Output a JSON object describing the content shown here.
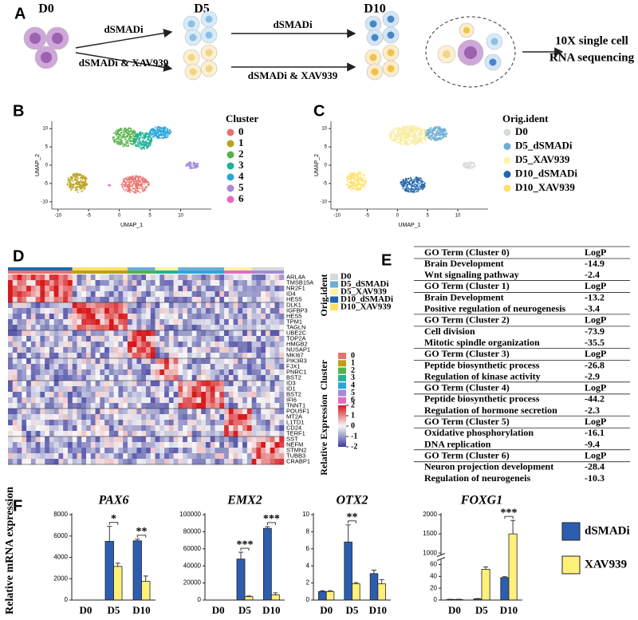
{
  "panel_labels": [
    "A",
    "B",
    "C",
    "D",
    "E",
    "F"
  ],
  "schematic": {
    "stages": [
      "D0",
      "D5",
      "D10"
    ],
    "treatments": [
      "dSMADi",
      "dSMADi & XAV939",
      "dSMADi",
      "dSMADi & XAV939"
    ],
    "output": [
      "10X single cell",
      "RNA sequencing"
    ]
  },
  "heatmap": {
    "genes": [
      "ARL4A",
      "TMSB15A",
      "NR2F1",
      "ID4",
      "HES5",
      "DLK1",
      "IGFBP3",
      "HES5",
      "TPM1",
      "TAGLN",
      "UBE2C",
      "TOP2A",
      "HMGB2",
      "NUSAP1",
      "MKI67",
      "PIK3R3",
      "FJX1",
      "PNRC1",
      "BST2",
      "ID3",
      "ID1",
      "BST2",
      "IFI6",
      "TNNT1",
      "POU5F1",
      "MT2A",
      "L1TD1",
      "CD24",
      "TERF1",
      "SST",
      "NEFM",
      "STMN2",
      "TUBB3",
      "CRABP1"
    ],
    "colorbar_title": "Relative Expression",
    "clim": [
      -2,
      2
    ],
    "colorbar_ticks": [
      2,
      1,
      0,
      -1,
      -2
    ]
  },
  "go_table": {
    "groups": [
      {
        "header": [
          "GO Term (Cluster 0)",
          "LogP"
        ],
        "rows": [
          [
            "Brain Development",
            -14.9
          ],
          [
            "Wnt signaling pathway",
            -2.4
          ]
        ]
      },
      {
        "header": [
          "GO Term (Cluster 1)",
          "LogP"
        ],
        "rows": [
          [
            "Brain Development",
            -13.2
          ],
          [
            "Positive regulation of neurogenesis",
            -3.4
          ]
        ]
      },
      {
        "header": [
          "GO Term (Cluster 2)",
          "LogP"
        ],
        "rows": [
          [
            "Cell division",
            -73.9
          ],
          [
            "Mitotic spindle organization",
            -35.5
          ]
        ]
      },
      {
        "header": [
          "GO Term (Cluster 3)",
          "LogP"
        ],
        "rows": [
          [
            "Peptide biosynthetic process",
            -26.8
          ],
          [
            "Regulation of kinase activity",
            -2.9
          ]
        ]
      },
      {
        "header": [
          "GO Term (Cluster 4)",
          "LogP"
        ],
        "rows": [
          [
            "Peptide biosynthetic process",
            -44.2
          ],
          [
            "Regulation of hormone secretion",
            -2.3
          ]
        ]
      },
      {
        "header": [
          "GO Term (Cluster 5)",
          "LogP"
        ],
        "rows": [
          [
            "Oxidative phosphorylation",
            -16.1
          ],
          [
            "DNA replication",
            -9.4
          ]
        ]
      },
      {
        "header": [
          "GO Term (Cluster 6)",
          "LogP"
        ],
        "rows": [
          [
            "Neuron projection development",
            -28.4
          ],
          [
            "Regulation of neurogeneis",
            -10.3
          ]
        ]
      }
    ]
  },
  "chart_data": [
    {
      "type": "scatter",
      "xlabel": "UMAP_1",
      "ylabel": "UMAP_2",
      "xlim": [
        -11,
        15
      ],
      "ylim": [
        -12,
        12
      ],
      "xticks": [
        -10,
        -5,
        0,
        5,
        10
      ],
      "yticks": [
        -10,
        -5,
        0,
        5,
        10
      ],
      "legend_title": "Cluster",
      "series": [
        {
          "name": "0",
          "color": "#e8726c"
        },
        {
          "name": "1",
          "color": "#b8a21a"
        },
        {
          "name": "2",
          "color": "#56b14a"
        },
        {
          "name": "3",
          "color": "#20b399"
        },
        {
          "name": "4",
          "color": "#2aa6d8"
        },
        {
          "name": "5",
          "color": "#a58ad6"
        },
        {
          "name": "6",
          "color": "#e46bc1"
        }
      ]
    },
    {
      "type": "scatter",
      "xlabel": "UMAP_1",
      "ylabel": "UMAP_2",
      "xlim": [
        -11,
        15
      ],
      "ylim": [
        -12,
        12
      ],
      "xticks": [
        -10,
        -5,
        0,
        5,
        10
      ],
      "yticks": [
        -10,
        -5,
        0,
        5,
        10
      ],
      "legend_title": "Orig.ident",
      "series": [
        {
          "name": "D0",
          "color": "#d9d9d9"
        },
        {
          "name": "D5_dSMADi",
          "color": "#6baed6"
        },
        {
          "name": "D5_XAV939",
          "color": "#fff3a8"
        },
        {
          "name": "D10_dSMADi",
          "color": "#2166ac"
        },
        {
          "name": "D10_XAV939",
          "color": "#ffe066"
        }
      ]
    },
    {
      "type": "bar",
      "title": "PAX6",
      "ylabel": "Relative mRNA expression",
      "categories": [
        "D0",
        "D5",
        "D10"
      ],
      "ylim": [
        0,
        8000
      ],
      "yticks": [
        0,
        2000,
        4000,
        6000,
        8000
      ],
      "series": [
        {
          "name": "dSMADi",
          "color": "#2d5db0",
          "values": [
            1,
            5500,
            5550
          ],
          "errors": [
            0,
            1400,
            150
          ]
        },
        {
          "name": "XAV939",
          "color": "#fff07a",
          "values": [
            1,
            3150,
            1750
          ],
          "errors": [
            0,
            300,
            500
          ]
        }
      ],
      "annotations": [
        {
          "text": "*",
          "category": 1
        },
        {
          "text": "**",
          "category": 2
        }
      ]
    },
    {
      "type": "bar",
      "title": "EMX2",
      "categories": [
        "D0",
        "D5",
        "D10"
      ],
      "ylim": [
        0,
        100000
      ],
      "yticks": [
        0,
        20000,
        40000,
        60000,
        80000,
        100000
      ],
      "series": [
        {
          "color": "#2d5db0",
          "values": [
            1,
            48000,
            84000
          ],
          "errors": [
            0,
            8000,
            2000
          ]
        },
        {
          "color": "#fff07a",
          "values": [
            1,
            4000,
            6000
          ],
          "errors": [
            0,
            800,
            2500
          ]
        }
      ],
      "annotations": [
        {
          "text": "***",
          "category": 1
        },
        {
          "text": "***",
          "category": 2
        }
      ]
    },
    {
      "type": "bar",
      "title": "OTX2",
      "categories": [
        "D0",
        "D5",
        "D10"
      ],
      "ylim": [
        0,
        10
      ],
      "yticks": [
        0,
        2,
        4,
        6,
        8,
        10
      ],
      "series": [
        {
          "color": "#2d5db0",
          "values": [
            1,
            6.8,
            3.1
          ],
          "errors": [
            0.1,
            2.0,
            0.4
          ]
        },
        {
          "color": "#fff07a",
          "values": [
            1,
            1.9,
            1.9
          ],
          "errors": [
            0.1,
            0.15,
            0.5
          ]
        }
      ],
      "annotations": [
        {
          "text": "**",
          "category": 1
        }
      ]
    },
    {
      "type": "bar",
      "title": "FOXG1",
      "categories": [
        "D0",
        "D5",
        "D10"
      ],
      "ylim": [
        0,
        2000
      ],
      "y_break": [
        65,
        1000
      ],
      "yticks": [
        0,
        20,
        40,
        60,
        1000,
        1500,
        2000
      ],
      "series": [
        {
          "color": "#2d5db0",
          "values": [
            1,
            2,
            38
          ],
          "errors": [
            0.3,
            0.5,
            1.5
          ]
        },
        {
          "color": "#fff07a",
          "values": [
            1,
            52,
            1500
          ],
          "errors": [
            0.3,
            4,
            350
          ]
        }
      ],
      "annotations": [
        {
          "text": "***",
          "category": 2
        }
      ]
    }
  ]
}
